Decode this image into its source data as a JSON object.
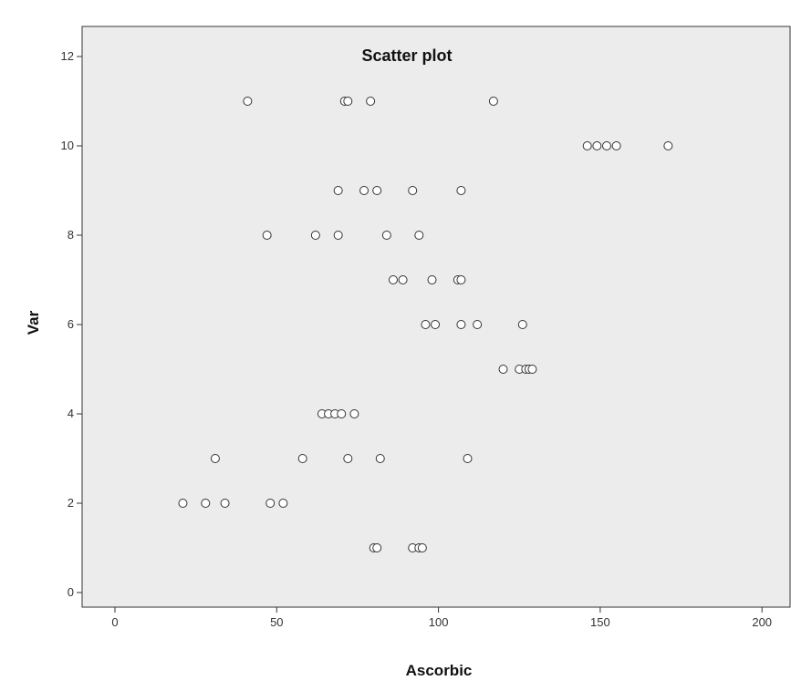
{
  "chart_data": {
    "type": "scatter",
    "title": "Scatter plot",
    "xlabel": "Ascorbic",
    "ylabel": "Var",
    "xlim": [
      0,
      200
    ],
    "ylim": [
      0,
      12
    ],
    "xticks": [
      "0",
      "50",
      "100",
      "150",
      "200"
    ],
    "yticks": [
      "0",
      "2",
      "4",
      "6",
      "8",
      "10",
      "12"
    ],
    "grid": false,
    "legend": "none",
    "colors": {
      "plot_background": "#ececec",
      "marker_stroke": "#333333",
      "marker_fill": "#ffffff"
    },
    "points": [
      {
        "x": 41,
        "y": 11
      },
      {
        "x": 71,
        "y": 11
      },
      {
        "x": 72,
        "y": 11
      },
      {
        "x": 79,
        "y": 11
      },
      {
        "x": 117,
        "y": 11
      },
      {
        "x": 146,
        "y": 10
      },
      {
        "x": 149,
        "y": 10
      },
      {
        "x": 152,
        "y": 10
      },
      {
        "x": 155,
        "y": 10
      },
      {
        "x": 171,
        "y": 10
      },
      {
        "x": 69,
        "y": 9
      },
      {
        "x": 77,
        "y": 9
      },
      {
        "x": 81,
        "y": 9
      },
      {
        "x": 92,
        "y": 9
      },
      {
        "x": 107,
        "y": 9
      },
      {
        "x": 47,
        "y": 8
      },
      {
        "x": 62,
        "y": 8
      },
      {
        "x": 69,
        "y": 8
      },
      {
        "x": 84,
        "y": 8
      },
      {
        "x": 94,
        "y": 8
      },
      {
        "x": 86,
        "y": 7
      },
      {
        "x": 89,
        "y": 7
      },
      {
        "x": 98,
        "y": 7
      },
      {
        "x": 106,
        "y": 7
      },
      {
        "x": 107,
        "y": 7
      },
      {
        "x": 96,
        "y": 6
      },
      {
        "x": 99,
        "y": 6
      },
      {
        "x": 107,
        "y": 6
      },
      {
        "x": 112,
        "y": 6
      },
      {
        "x": 126,
        "y": 6
      },
      {
        "x": 120,
        "y": 5
      },
      {
        "x": 125,
        "y": 5
      },
      {
        "x": 127,
        "y": 5
      },
      {
        "x": 128,
        "y": 5
      },
      {
        "x": 129,
        "y": 5
      },
      {
        "x": 64,
        "y": 4
      },
      {
        "x": 66,
        "y": 4
      },
      {
        "x": 68,
        "y": 4
      },
      {
        "x": 70,
        "y": 4
      },
      {
        "x": 74,
        "y": 4
      },
      {
        "x": 31,
        "y": 3
      },
      {
        "x": 58,
        "y": 3
      },
      {
        "x": 72,
        "y": 3
      },
      {
        "x": 82,
        "y": 3
      },
      {
        "x": 109,
        "y": 3
      },
      {
        "x": 21,
        "y": 2
      },
      {
        "x": 28,
        "y": 2
      },
      {
        "x": 34,
        "y": 2
      },
      {
        "x": 48,
        "y": 2
      },
      {
        "x": 52,
        "y": 2
      },
      {
        "x": 80,
        "y": 1
      },
      {
        "x": 81,
        "y": 1
      },
      {
        "x": 92,
        "y": 1
      },
      {
        "x": 94,
        "y": 1
      },
      {
        "x": 95,
        "y": 1
      }
    ]
  }
}
